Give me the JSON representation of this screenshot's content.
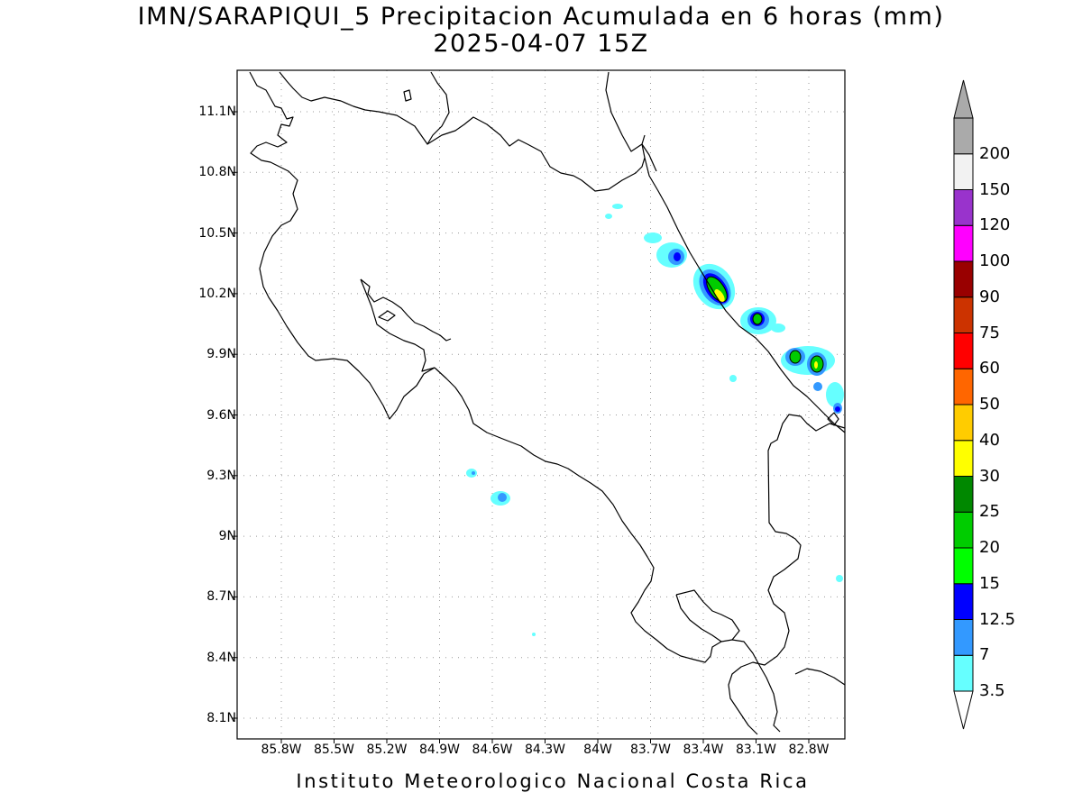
{
  "title": {
    "line1": "IMN/SARAPIQUI_5 Precipitacion Acumulada en 6 horas (mm)",
    "line2": "2025-04-07 15Z"
  },
  "footer": "Instituto Meteorologico Nacional Costa Rica",
  "map": {
    "lon_range": [
      -86.0,
      -83.75
    ],
    "lat_range": [
      8.0,
      11.3
    ],
    "grid": true,
    "lat_ticks": [
      {
        "value": 11.1,
        "label": "11.1N"
      },
      {
        "value": 10.8,
        "label": "10.8N"
      },
      {
        "value": 10.5,
        "label": "10.5N"
      },
      {
        "value": 10.2,
        "label": "10.2N"
      },
      {
        "value": 9.9,
        "label": "9.9N"
      },
      {
        "value": 9.6,
        "label": "9.6N"
      },
      {
        "value": 9.3,
        "label": "9.3N"
      },
      {
        "value": 9.0,
        "label": "9N"
      },
      {
        "value": 8.7,
        "label": "8.7N"
      },
      {
        "value": 8.4,
        "label": "8.4N"
      },
      {
        "value": 8.1,
        "label": "8.1N"
      }
    ],
    "lon_ticks": [
      {
        "value": -85.8,
        "label": "85.8W"
      },
      {
        "value": -85.5,
        "label": "85.5W"
      },
      {
        "value": -85.2,
        "label": "85.2W"
      },
      {
        "value": -84.9,
        "label": "84.9W"
      },
      {
        "value": -84.6,
        "label": "84.6W"
      },
      {
        "value": -84.3,
        "label": "84.3W"
      },
      {
        "value": -84.0,
        "label": "84W"
      },
      {
        "value": -83.7,
        "label": "83.7W"
      },
      {
        "value": -83.4,
        "label": "83.4W"
      },
      {
        "value": -83.1,
        "label": "83.1W"
      },
      {
        "value": -82.8,
        "label": "82.8W"
      }
    ]
  },
  "colorbar": {
    "levels": [
      {
        "label": "3.5",
        "color": "#66ffff"
      },
      {
        "label": "7",
        "color": "#3399ff"
      },
      {
        "label": "12.5",
        "color": "#0000ff"
      },
      {
        "label": "15",
        "color": "#00ff00"
      },
      {
        "label": "20",
        "color": "#00cc00"
      },
      {
        "label": "25",
        "color": "#008800"
      },
      {
        "label": "30",
        "color": "#ffff00"
      },
      {
        "label": "40",
        "color": "#ffcc00"
      },
      {
        "label": "50",
        "color": "#ff6600"
      },
      {
        "label": "60",
        "color": "#ff0000"
      },
      {
        "label": "75",
        "color": "#cc3300"
      },
      {
        "label": "90",
        "color": "#990000"
      },
      {
        "label": "100",
        "color": "#ff00ff"
      },
      {
        "label": "120",
        "color": "#9933cc"
      },
      {
        "label": "150",
        "color": "#f2f2f2"
      },
      {
        "label": "200",
        "color": "#aaaaaa"
      }
    ],
    "lower_arrow_color": "#ffffff",
    "upper_arrow_color": "#aaaaaa"
  }
}
